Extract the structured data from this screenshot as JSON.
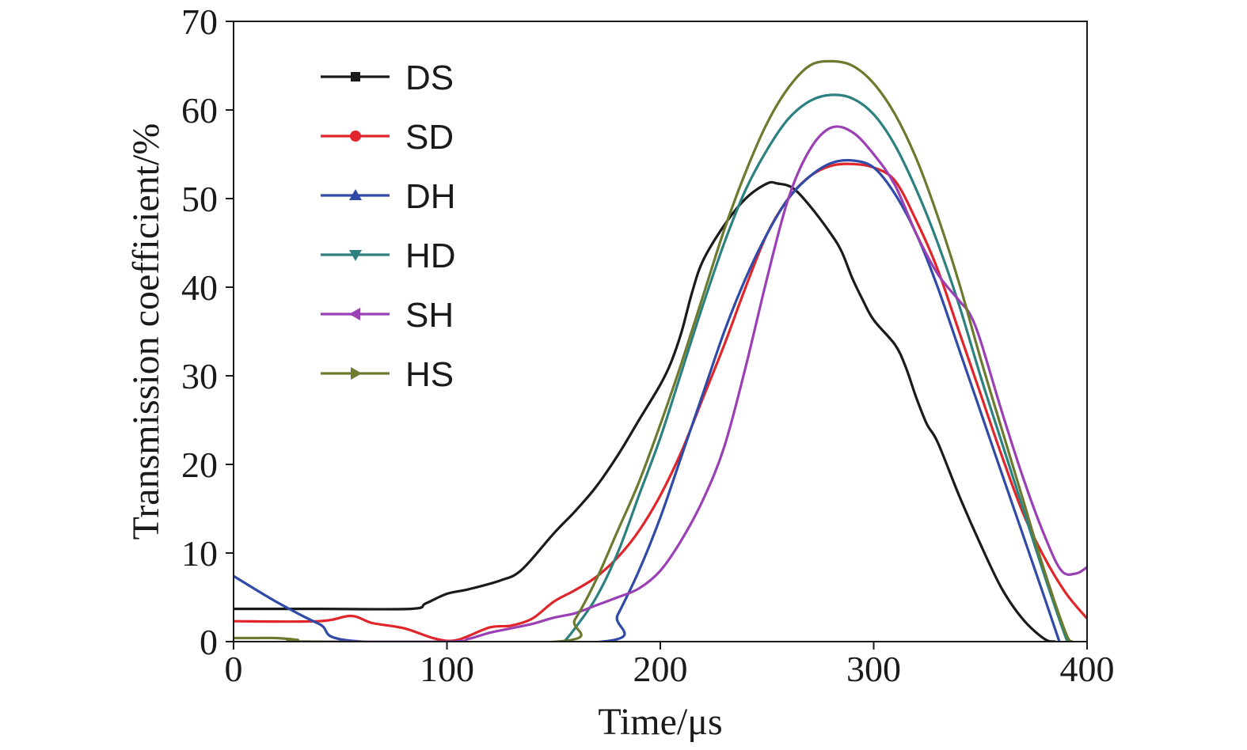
{
  "chart_data": {
    "type": "line",
    "title": "",
    "xlabel": "Time/μs",
    "ylabel": "Transmission coefficient/%",
    "xlim": [
      0,
      400
    ],
    "ylim": [
      0,
      70
    ],
    "xticks": [
      0,
      100,
      200,
      300,
      400
    ],
    "yticks": [
      0,
      10,
      20,
      30,
      40,
      50,
      60,
      70
    ],
    "grid": false,
    "legend_position": "top-left",
    "series": [
      {
        "name": "DS",
        "color": "#1a1a1a",
        "marker": "square",
        "points": [
          [
            0,
            3.7
          ],
          [
            40,
            3.7
          ],
          [
            83,
            3.7
          ],
          [
            90,
            4.3
          ],
          [
            100,
            5.4
          ],
          [
            110,
            5.9
          ],
          [
            125,
            6.9
          ],
          [
            135,
            8.1
          ],
          [
            150,
            12.2
          ],
          [
            160,
            14.7
          ],
          [
            170,
            17.5
          ],
          [
            180,
            21.0
          ],
          [
            190,
            25.0
          ],
          [
            200,
            29.0
          ],
          [
            205,
            31.5
          ],
          [
            210,
            35.0
          ],
          [
            215,
            39.5
          ],
          [
            220,
            43.0
          ],
          [
            230,
            47.0
          ],
          [
            240,
            50.0
          ],
          [
            250,
            51.7
          ],
          [
            255,
            51.7
          ],
          [
            262,
            51.2
          ],
          [
            270,
            49.2
          ],
          [
            280,
            46.0
          ],
          [
            285,
            44.0
          ],
          [
            290,
            41.0
          ],
          [
            295,
            38.5
          ],
          [
            300,
            36.3
          ],
          [
            310,
            33.5
          ],
          [
            315,
            31.0
          ],
          [
            320,
            27.5
          ],
          [
            325,
            24.5
          ],
          [
            330,
            22.5
          ],
          [
            340,
            16.5
          ],
          [
            350,
            11.0
          ],
          [
            360,
            6.0
          ],
          [
            370,
            2.5
          ],
          [
            380,
            0.3
          ],
          [
            385,
            0
          ]
        ]
      },
      {
        "name": "SD",
        "color": "#e0262b",
        "marker": "circle",
        "points": [
          [
            0,
            2.3
          ],
          [
            40,
            2.3
          ],
          [
            55,
            2.9
          ],
          [
            65,
            2.1
          ],
          [
            80,
            1.5
          ],
          [
            95,
            0.3
          ],
          [
            105,
            0.2
          ],
          [
            120,
            1.6
          ],
          [
            130,
            1.8
          ],
          [
            140,
            2.6
          ],
          [
            150,
            4.5
          ],
          [
            160,
            5.8
          ],
          [
            170,
            7.3
          ],
          [
            180,
            9.5
          ],
          [
            190,
            12.5
          ],
          [
            200,
            16.5
          ],
          [
            210,
            21.5
          ],
          [
            220,
            27.5
          ],
          [
            230,
            33.5
          ],
          [
            240,
            40.0
          ],
          [
            250,
            46.0
          ],
          [
            260,
            50.0
          ],
          [
            270,
            52.5
          ],
          [
            280,
            53.7
          ],
          [
            290,
            53.9
          ],
          [
            300,
            53.5
          ],
          [
            310,
            52.0
          ],
          [
            320,
            47.5
          ],
          [
            330,
            42.0
          ],
          [
            340,
            35.0
          ],
          [
            350,
            28.0
          ],
          [
            360,
            21.0
          ],
          [
            370,
            14.5
          ],
          [
            380,
            9.5
          ],
          [
            390,
            5.5
          ],
          [
            400,
            2.6
          ]
        ]
      },
      {
        "name": "DH",
        "color": "#2f4aa7",
        "marker": "triangle-up",
        "points": [
          [
            0,
            7.4
          ],
          [
            20,
            4.5
          ],
          [
            40,
            2.0
          ],
          [
            60,
            0
          ],
          [
            173,
            0
          ],
          [
            180,
            3.0
          ],
          [
            190,
            8.0
          ],
          [
            200,
            14.0
          ],
          [
            210,
            21.0
          ],
          [
            220,
            28.0
          ],
          [
            230,
            35.0
          ],
          [
            240,
            41.0
          ],
          [
            250,
            46.0
          ],
          [
            260,
            50.0
          ],
          [
            270,
            52.5
          ],
          [
            280,
            54.0
          ],
          [
            290,
            54.3
          ],
          [
            300,
            53.5
          ],
          [
            310,
            50.5
          ],
          [
            320,
            46.0
          ],
          [
            330,
            40.0
          ],
          [
            340,
            33.0
          ],
          [
            350,
            26.0
          ],
          [
            360,
            19.0
          ],
          [
            370,
            12.0
          ],
          [
            380,
            5.0
          ],
          [
            387,
            0
          ]
        ]
      },
      {
        "name": "HD",
        "color": "#2d8080",
        "marker": "triangle-down",
        "points": [
          [
            155,
            0
          ],
          [
            160,
            1.5
          ],
          [
            170,
            5.0
          ],
          [
            180,
            10.0
          ],
          [
            190,
            16.5
          ],
          [
            200,
            23.0
          ],
          [
            210,
            30.5
          ],
          [
            220,
            38.0
          ],
          [
            230,
            45.0
          ],
          [
            240,
            51.0
          ],
          [
            250,
            55.5
          ],
          [
            260,
            59.0
          ],
          [
            270,
            61.0
          ],
          [
            280,
            61.7
          ],
          [
            290,
            61.3
          ],
          [
            300,
            59.5
          ],
          [
            310,
            56.0
          ],
          [
            320,
            51.0
          ],
          [
            330,
            45.0
          ],
          [
            340,
            38.0
          ],
          [
            350,
            30.0
          ],
          [
            360,
            22.5
          ],
          [
            370,
            15.0
          ],
          [
            380,
            7.5
          ],
          [
            390,
            0.5
          ],
          [
            392,
            0
          ]
        ]
      },
      {
        "name": "SH",
        "color": "#9b3fb4",
        "marker": "triangle-left",
        "points": [
          [
            30,
            0
          ],
          [
            100,
            0
          ],
          [
            110,
            0.3
          ],
          [
            120,
            1.0
          ],
          [
            130,
            1.5
          ],
          [
            140,
            2.0
          ],
          [
            150,
            2.7
          ],
          [
            160,
            3.2
          ],
          [
            170,
            4.1
          ],
          [
            180,
            5.0
          ],
          [
            190,
            6.0
          ],
          [
            200,
            8.0
          ],
          [
            210,
            11.5
          ],
          [
            220,
            16.0
          ],
          [
            230,
            22.0
          ],
          [
            240,
            31.0
          ],
          [
            250,
            41.0
          ],
          [
            260,
            50.0
          ],
          [
            270,
            55.5
          ],
          [
            280,
            58.0
          ],
          [
            290,
            57.5
          ],
          [
            300,
            55.0
          ],
          [
            310,
            51.5
          ],
          [
            320,
            46.0
          ],
          [
            330,
            41.5
          ],
          [
            340,
            38.5
          ],
          [
            345,
            37.0
          ],
          [
            350,
            34.0
          ],
          [
            360,
            26.0
          ],
          [
            370,
            18.5
          ],
          [
            380,
            12.0
          ],
          [
            388,
            8.0
          ],
          [
            395,
            7.7
          ],
          [
            400,
            8.4
          ]
        ]
      },
      {
        "name": "HS",
        "color": "#6b7a2e",
        "marker": "triangle-right",
        "points": [
          [
            0,
            0.4
          ],
          [
            10,
            0.4
          ],
          [
            20,
            0.4
          ],
          [
            30,
            0.2
          ],
          [
            35,
            0
          ],
          [
            152,
            0
          ],
          [
            160,
            2.5
          ],
          [
            170,
            7.0
          ],
          [
            180,
            12.5
          ],
          [
            190,
            18.0
          ],
          [
            200,
            24.5
          ],
          [
            210,
            31.5
          ],
          [
            220,
            39.0
          ],
          [
            230,
            46.5
          ],
          [
            240,
            53.0
          ],
          [
            250,
            58.5
          ],
          [
            260,
            62.5
          ],
          [
            270,
            65.0
          ],
          [
            280,
            65.5
          ],
          [
            290,
            65.0
          ],
          [
            300,
            63.0
          ],
          [
            310,
            59.5
          ],
          [
            320,
            54.5
          ],
          [
            330,
            48.0
          ],
          [
            340,
            40.5
          ],
          [
            350,
            32.0
          ],
          [
            360,
            24.0
          ],
          [
            370,
            16.0
          ],
          [
            380,
            8.0
          ],
          [
            390,
            1.0
          ],
          [
            393,
            0
          ]
        ]
      }
    ]
  }
}
